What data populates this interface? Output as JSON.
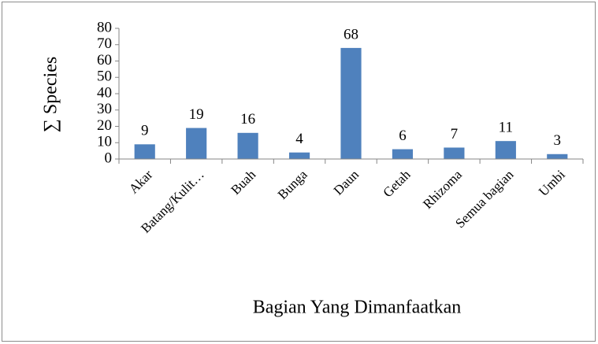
{
  "chart_data": {
    "type": "bar",
    "categories": [
      "Akar",
      "Batang/Kulit…",
      "Buah",
      "Bunga",
      "Daun",
      "Getah",
      "Rhizoma",
      "Semua bagian",
      "Umbi"
    ],
    "values": [
      9,
      19,
      16,
      4,
      68,
      6,
      7,
      11,
      3
    ],
    "color": "#4f81bd",
    "ylim": [
      0,
      80
    ],
    "yticks": [
      0,
      10,
      20,
      30,
      40,
      50,
      60,
      70,
      80
    ],
    "x_label": "Bagian Yang Dimanfaatkan",
    "y_label": "∑ Species",
    "grid": false
  }
}
